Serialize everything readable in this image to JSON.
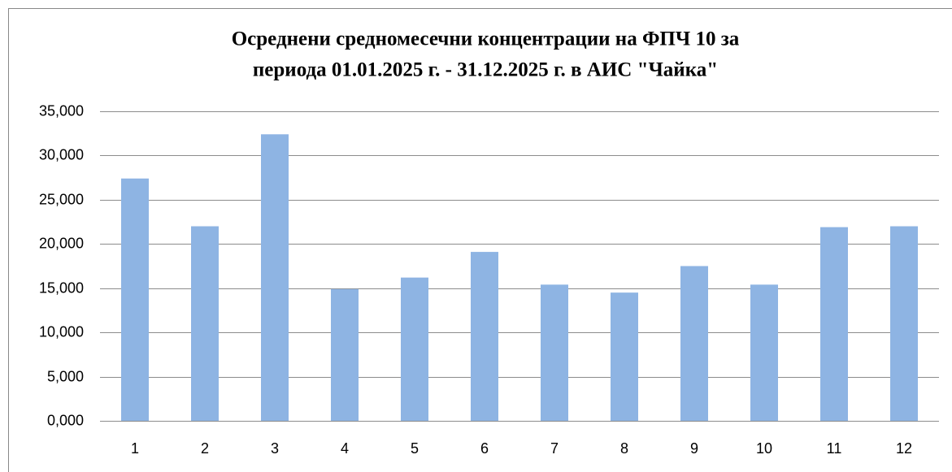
{
  "chart_data": {
    "type": "bar",
    "title": [
      "Осреднени средномесечни концентрации на ФПЧ 10 за",
      "периода 01.01.2025 г. - 31.12.2025 г. в АИС \"Чайка\""
    ],
    "categories": [
      "1",
      "2",
      "3",
      "4",
      "5",
      "6",
      "7",
      "8",
      "9",
      "10",
      "11",
      "12"
    ],
    "values": [
      27.4,
      22.0,
      32.4,
      14.9,
      16.2,
      19.1,
      15.4,
      14.5,
      17.5,
      15.4,
      21.9,
      22.0
    ],
    "color": "#8eb4e3",
    "ylim": [
      0,
      35
    ],
    "yticks": [
      {
        "value": 0,
        "label": "0,000"
      },
      {
        "value": 5,
        "label": "5,000"
      },
      {
        "value": 10,
        "label": "10,000"
      },
      {
        "value": 15,
        "label": "15,000"
      },
      {
        "value": 20,
        "label": "20,000"
      },
      {
        "value": 25,
        "label": "25,000"
      },
      {
        "value": 30,
        "label": "30,000"
      },
      {
        "value": 35,
        "label": "35,000"
      }
    ],
    "grid": true
  }
}
